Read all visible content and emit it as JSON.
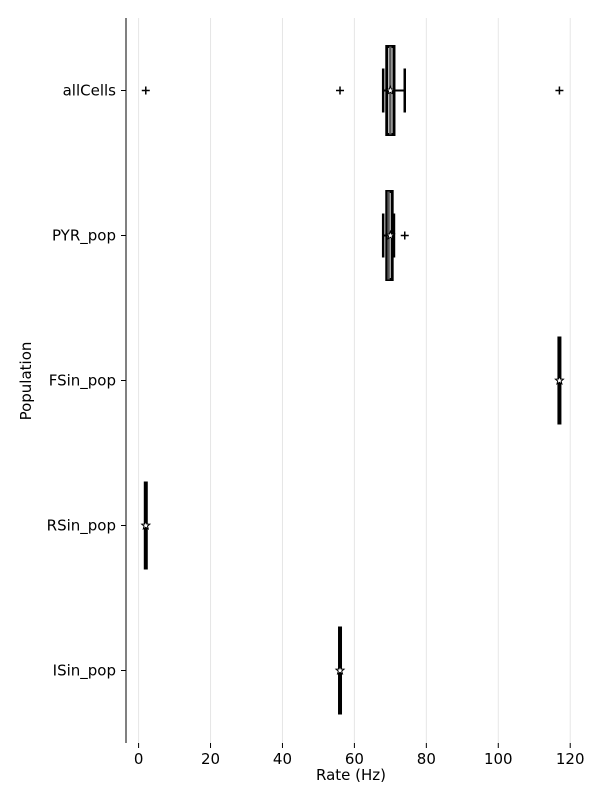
{
  "chart_data": {
    "type": "boxplot",
    "orientation": "horizontal",
    "xlabel": "Rate (Hz)",
    "ylabel": "Population",
    "xlim": [
      -3.5,
      125.5
    ],
    "xticks": [
      0,
      20,
      40,
      60,
      80,
      100,
      120
    ],
    "grid": "vertical",
    "categories": [
      "allCells",
      "PYR_pop",
      "FSin_pop",
      "RSin_pop",
      "ISin_pop"
    ],
    "series": [
      {
        "category": "allCells",
        "whisker_low": 68,
        "q1": 69,
        "median": 70,
        "mean": 70,
        "q3": 71,
        "whisker_high": 74,
        "outliers": [
          2,
          56,
          117
        ]
      },
      {
        "category": "PYR_pop",
        "whisker_low": 68,
        "q1": 69,
        "median": 69.5,
        "mean": 70,
        "q3": 70.5,
        "whisker_high": 71,
        "outliers": [
          74
        ]
      },
      {
        "category": "FSin_pop",
        "whisker_low": 117,
        "q1": 117,
        "median": 117,
        "mean": 117,
        "q3": 117,
        "whisker_high": 117,
        "outliers": []
      },
      {
        "category": "RSin_pop",
        "whisker_low": 2,
        "q1": 2,
        "median": 2,
        "mean": 2,
        "q3": 2,
        "whisker_high": 2,
        "outliers": []
      },
      {
        "category": "ISin_pop",
        "whisker_low": 56,
        "q1": 56,
        "median": 56,
        "mean": 56,
        "q3": 56,
        "whisker_high": 56,
        "outliers": []
      }
    ],
    "colors": {
      "box": "#000000",
      "median": "#555555",
      "grid": "#e6e6e6"
    }
  }
}
